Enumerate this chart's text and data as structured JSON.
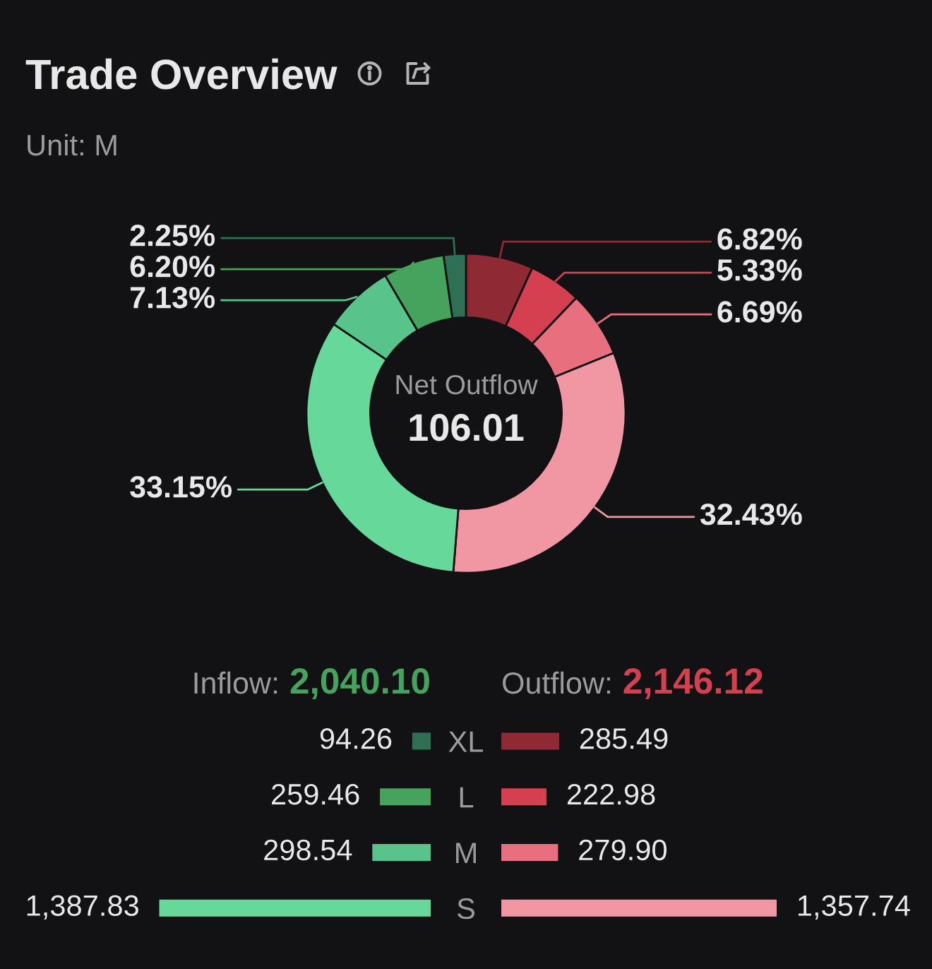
{
  "chart_data": [
    {
      "type": "donut",
      "title": "Trade Overview",
      "subtitle": "Unit: M",
      "categories": [
        null,
        null,
        null,
        null,
        null,
        null,
        null,
        null
      ],
      "values": [
        6.82,
        5.33,
        6.69,
        32.43,
        33.15,
        7.13,
        6.2,
        2.25
      ],
      "colors": [
        "#8f2a35",
        "#d4404f",
        "#e8707e",
        "#f197a4",
        "#66d99a",
        "#58c48b",
        "#46a35e",
        "#2f6f53"
      ],
      "value_labels": [
        "6.82%",
        "5.33%",
        "6.69%",
        "32.43%",
        "33.15%",
        "7.13%",
        "6.20%",
        "2.25%"
      ],
      "annotations": [
        "Net Outflow",
        "106.01"
      ]
    },
    {
      "type": "bar",
      "orientation": "horizontal",
      "title": "Inflow: 2,040.10",
      "categories": [
        "XL",
        "L",
        "M",
        "S"
      ],
      "values": [
        94.26,
        259.46,
        298.54,
        1387.83
      ],
      "colors": [
        "#2f6f53",
        "#46a35e",
        "#58c48b",
        "#66d99a"
      ],
      "value_labels": [
        "94.26",
        "259.46",
        "298.54",
        "1,387.83"
      ],
      "tick_labels": "y"
    },
    {
      "type": "bar",
      "orientation": "horizontal",
      "title": "Outflow: 2,146.12",
      "categories": [
        null,
        null,
        null,
        null
      ],
      "values": [
        285.49,
        222.98,
        279.9,
        1357.74
      ],
      "colors": [
        "#8f2a35",
        "#d4404f",
        "#e8707e",
        "#f197a4"
      ],
      "value_labels": [
        "285.49",
        "222.98",
        "279.90",
        "1,357.74"
      ],
      "tick_labels": false
    }
  ]
}
